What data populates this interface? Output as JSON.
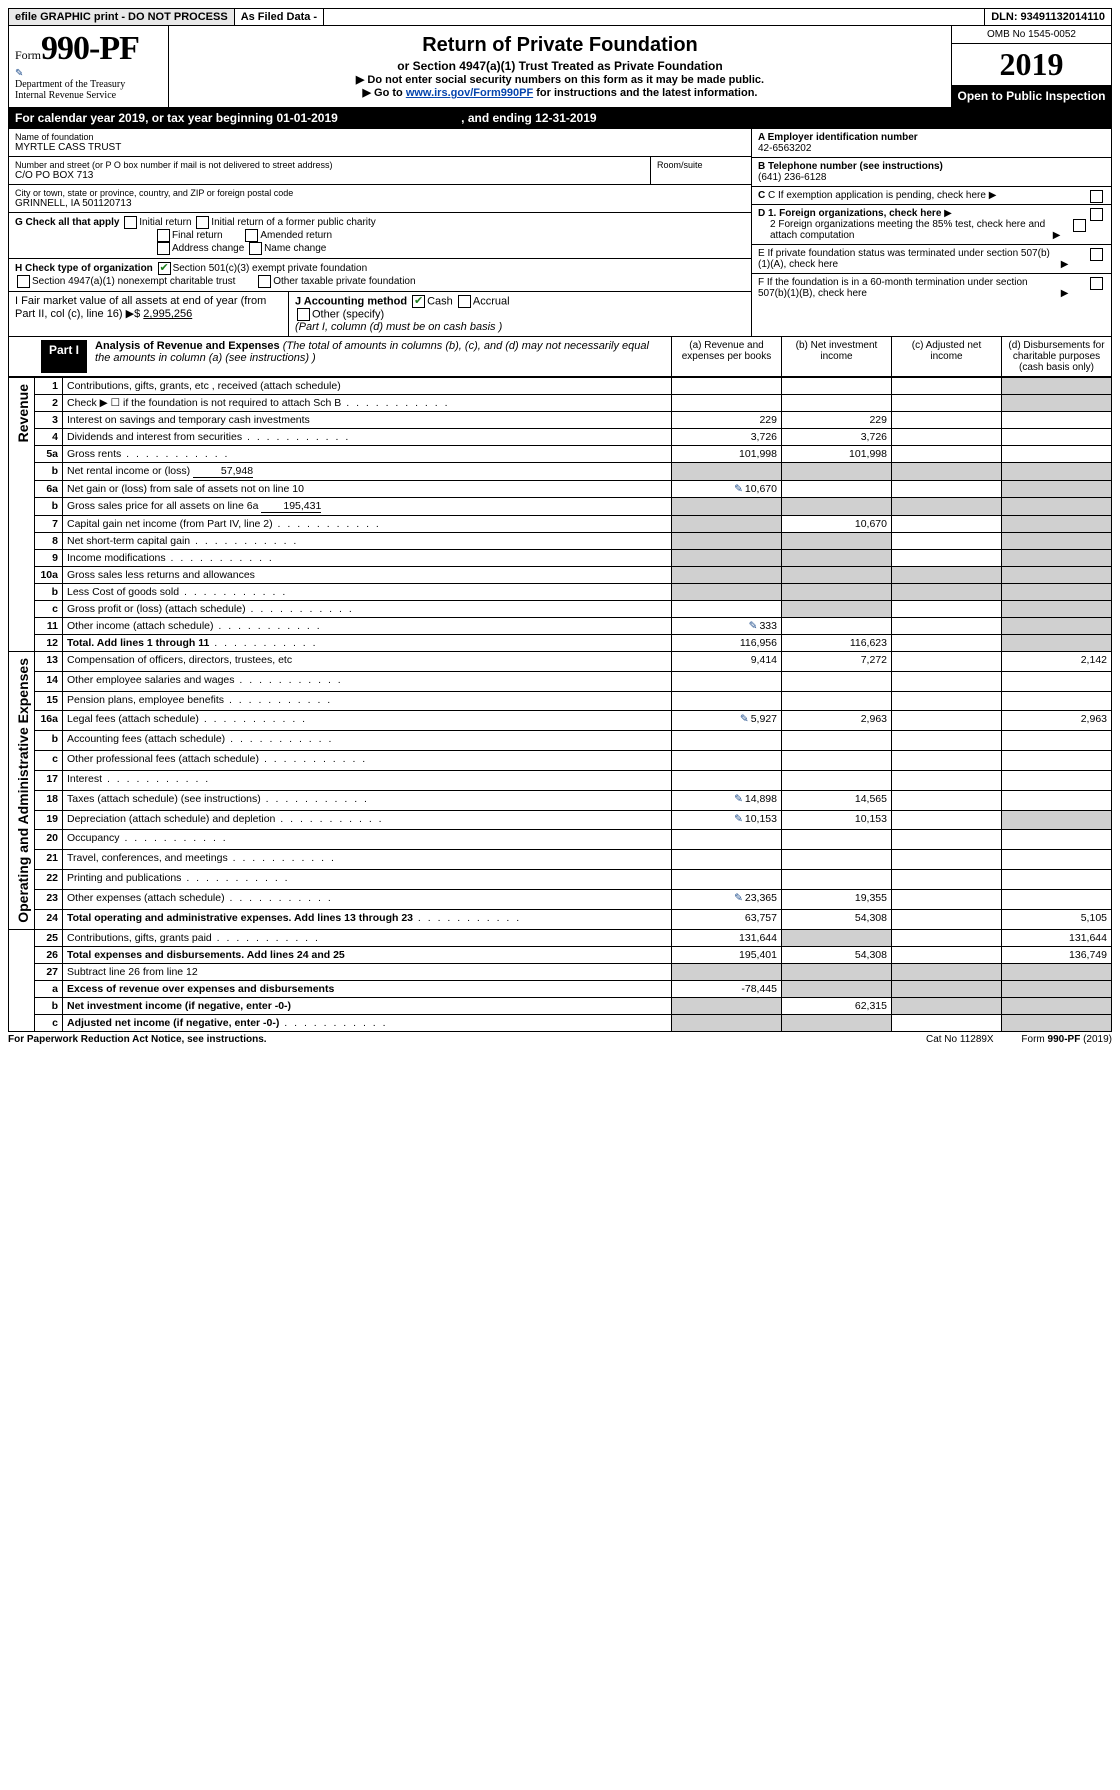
{
  "topbar": {
    "efile": "efile GRAPHIC print - DO NOT PROCESS",
    "asfiled": "As Filed Data -",
    "dln": "DLN: 93491132014110"
  },
  "header": {
    "formPrefix": "Form",
    "formNum": "990-PF",
    "dept": "Department of the Treasury",
    "irs": "Internal Revenue Service",
    "title": "Return of Private Foundation",
    "subtitle": "or Section 4947(a)(1) Trust Treated as Private Foundation",
    "note1": "▶ Do not enter social security numbers on this form as it may be made public.",
    "note2": "▶ Go to ",
    "link": "www.irs.gov/Form990PF",
    "note3": " for instructions and the latest information.",
    "omb": "OMB No 1545-0052",
    "year": "2019",
    "open": "Open to Public Inspection"
  },
  "calyear": {
    "text": "For calendar year 2019, or tax year beginning 01-01-2019",
    "ending": ", and ending 12-31-2019"
  },
  "info": {
    "nameLabel": "Name of foundation",
    "name": "MYRTLE CASS TRUST",
    "addrLabel": "Number and street (or P O  box number if mail is not delivered to street address)",
    "addr": "C/O PO BOX 713",
    "roomLabel": "Room/suite",
    "cityLabel": "City or town, state or province, country, and ZIP or foreign postal code",
    "city": "GRINNELL, IA  501120713",
    "A": "A Employer identification number",
    "Aval": "42-6563202",
    "B": "B Telephone number (see instructions)",
    "Bval": "(641) 236-6128",
    "C": "C If exemption application is pending, check here",
    "G": "G Check all that apply",
    "g1": "Initial return",
    "g2": "Initial return of a former public charity",
    "g3": "Final return",
    "g4": "Amended return",
    "g5": "Address change",
    "g6": "Name change",
    "D1": "D 1. Foreign organizations, check here",
    "D2": "2 Foreign organizations meeting the 85% test, check here and attach computation",
    "E": "E  If private foundation status was terminated under section 507(b)(1)(A), check here",
    "H": "H Check type of organization",
    "h1": "Section 501(c)(3) exempt private foundation",
    "h2": "Section 4947(a)(1) nonexempt charitable trust",
    "h3": "Other taxable private foundation",
    "F": "F  If the foundation is in a 60-month termination under section 507(b)(1)(B), check here",
    "I": "I Fair market value of all assets at end of year (from Part II, col  (c), line 16) ▶$",
    "Ival": "2,995,256",
    "J": "J Accounting method",
    "j1": "Cash",
    "j2": "Accrual",
    "j3": "Other (specify)",
    "Jnote": "(Part I, column (d) must be on cash basis )"
  },
  "part1": {
    "label": "Part I",
    "title": "Analysis of Revenue and Expenses",
    "titleNote": "(The total of amounts in columns (b), (c), and (d) may not necessarily equal the amounts in column (a) (see instructions) )",
    "colA": "(a)  Revenue and expenses per books",
    "colB": "(b)  Net investment income",
    "colC": "(c)  Adjusted net income",
    "colD": "(d)  Disbursements for charitable purposes (cash basis only)",
    "sideRev": "Revenue",
    "sideExp": "Operating and Administrative Expenses"
  },
  "rows": [
    {
      "n": "1",
      "d": "Contributions, gifts, grants, etc , received (attach schedule)",
      "shadeD": true
    },
    {
      "n": "2",
      "d": "Check ▶ ☐ if the foundation is not required to attach Sch  B",
      "dotted": true,
      "shadeD": true
    },
    {
      "n": "3",
      "d": "Interest on savings and temporary cash investments",
      "a": "229",
      "b": "229"
    },
    {
      "n": "4",
      "d": "Dividends and interest from securities",
      "dotted": true,
      "a": "3,726",
      "b": "3,726"
    },
    {
      "n": "5a",
      "d": "Gross rents",
      "dotted": true,
      "a": "101,998",
      "b": "101,998"
    },
    {
      "n": "b",
      "d": "Net rental income or (loss)",
      "inline": "57,948",
      "shadeABCD": true
    },
    {
      "n": "6a",
      "d": "Net gain or (loss) from sale of assets not on line 10",
      "pencil": true,
      "a": "10,670",
      "shadeD": true
    },
    {
      "n": "b",
      "d": "Gross sales price for all assets on line 6a",
      "inline": "195,431",
      "shadeABCD": true
    },
    {
      "n": "7",
      "d": "Capital gain net income (from Part IV, line 2)",
      "dotted": true,
      "b": "10,670",
      "shadeA": true,
      "shadeD": true
    },
    {
      "n": "8",
      "d": "Net short-term capital gain",
      "dotted": true,
      "shadeA": true,
      "shadeB": true,
      "shadeD": true
    },
    {
      "n": "9",
      "d": "Income modifications",
      "dotted": true,
      "shadeA": true,
      "shadeB": true,
      "shadeD": true
    },
    {
      "n": "10a",
      "d": "Gross sales less returns and allowances",
      "shadeABCD": true
    },
    {
      "n": "b",
      "d": "Less  Cost of goods sold",
      "dotted": true,
      "shadeABCD": true
    },
    {
      "n": "c",
      "d": "Gross profit or (loss) (attach schedule)",
      "dotted": true,
      "shadeB": true,
      "shadeD": true
    },
    {
      "n": "11",
      "d": "Other income (attach schedule)",
      "dotted": true,
      "pencil": true,
      "a": "333",
      "shadeD": true
    },
    {
      "n": "12",
      "d": "Total. Add lines 1 through 11",
      "dotted": true,
      "bold": true,
      "a": "116,956",
      "b": "116,623",
      "shadeD": true
    },
    {
      "n": "13",
      "d": "Compensation of officers, directors, trustees, etc",
      "a": "9,414",
      "b": "7,272",
      "d4": "2,142"
    },
    {
      "n": "14",
      "d": "Other employee salaries and wages",
      "dotted": true
    },
    {
      "n": "15",
      "d": "Pension plans, employee benefits",
      "dotted": true
    },
    {
      "n": "16a",
      "d": "Legal fees (attach schedule)",
      "dotted": true,
      "pencil": true,
      "a": "5,927",
      "b": "2,963",
      "d4": "2,963"
    },
    {
      "n": "b",
      "d": "Accounting fees (attach schedule)",
      "dotted": true
    },
    {
      "n": "c",
      "d": "Other professional fees (attach schedule)",
      "dotted": true
    },
    {
      "n": "17",
      "d": "Interest",
      "dotted": true
    },
    {
      "n": "18",
      "d": "Taxes (attach schedule) (see instructions)",
      "dotted": true,
      "pencil": true,
      "a": "14,898",
      "b": "14,565"
    },
    {
      "n": "19",
      "d": "Depreciation (attach schedule) and depletion",
      "dotted": true,
      "pencil": true,
      "a": "10,153",
      "b": "10,153",
      "shadeD": true
    },
    {
      "n": "20",
      "d": "Occupancy",
      "dotted": true
    },
    {
      "n": "21",
      "d": "Travel, conferences, and meetings",
      "dotted": true
    },
    {
      "n": "22",
      "d": "Printing and publications",
      "dotted": true
    },
    {
      "n": "23",
      "d": "Other expenses (attach schedule)",
      "dotted": true,
      "pencil": true,
      "a": "23,365",
      "b": "19,355"
    },
    {
      "n": "24",
      "d": "Total operating and administrative expenses. Add lines 13 through 23",
      "dotted": true,
      "bold": true,
      "a": "63,757",
      "b": "54,308",
      "d4": "5,105"
    },
    {
      "n": "25",
      "d": "Contributions, gifts, grants paid",
      "dotted": true,
      "a": "131,644",
      "shadeB": true,
      "d4": "131,644"
    },
    {
      "n": "26",
      "d": "Total expenses and disbursements. Add lines 24 and 25",
      "bold": true,
      "a": "195,401",
      "b": "54,308",
      "d4": "136,749"
    },
    {
      "n": "27",
      "d": "Subtract line 26 from line 12",
      "shadeABCD": true
    },
    {
      "n": "a",
      "d": "Excess of revenue over expenses and disbursements",
      "bold": true,
      "a": "-78,445",
      "shadeB": true,
      "shadeC": true,
      "shadeD": true
    },
    {
      "n": "b",
      "d": "Net investment income (if negative, enter -0-)",
      "bold": true,
      "b": "62,315",
      "shadeA": true,
      "shadeC": true,
      "shadeD": true
    },
    {
      "n": "c",
      "d": "Adjusted net income (if negative, enter -0-)",
      "bold": true,
      "dotted": true,
      "shadeA": true,
      "shadeB": true,
      "shadeD": true
    }
  ],
  "footer": {
    "left": "For Paperwork Reduction Act Notice, see instructions.",
    "mid": "Cat  No  11289X",
    "right": "Form 990-PF (2019)"
  }
}
